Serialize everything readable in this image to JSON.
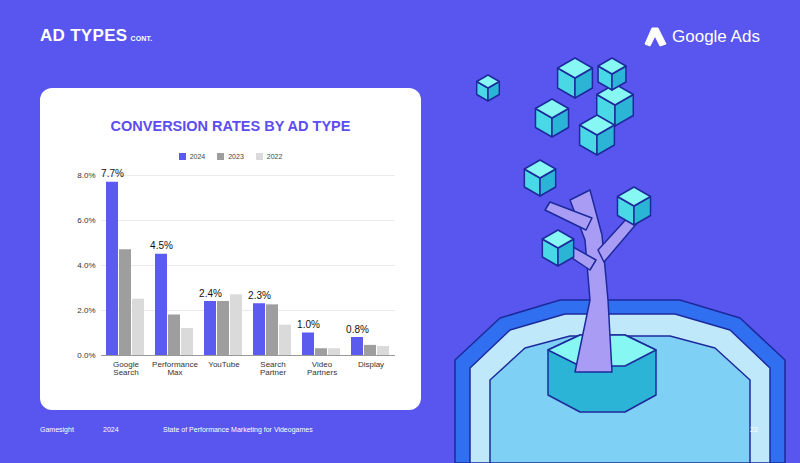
{
  "page": {
    "header": "AD TYPES",
    "header_suffix": "CONT.",
    "brand": "Google Ads",
    "footer": [
      "Gamesight",
      "2024",
      "State of Performance Marketing for Videogames",
      "22"
    ]
  },
  "chart_data": {
    "type": "bar",
    "title": "CONVERSION RATES BY AD TYPE",
    "categories": [
      "Google Search",
      "Performance Max",
      "YouTube",
      "Search Partner",
      "Video Partners",
      "Display"
    ],
    "series": [
      {
        "name": "2024",
        "color": "#5b5bf0",
        "values": [
          7.7,
          4.5,
          2.4,
          2.3,
          1.0,
          0.8
        ],
        "data_labels": true,
        "value_labels": [
          "7.7%",
          "4.5%",
          "2.4%",
          "2.3%",
          "1.0%",
          "0.8%"
        ]
      },
      {
        "name": "2023",
        "color": "#9e9e9e",
        "values": [
          4.7,
          1.8,
          2.4,
          2.25,
          0.3,
          0.45
        ]
      },
      {
        "name": "2022",
        "color": "#dadada",
        "values": [
          2.5,
          1.2,
          2.7,
          1.35,
          0.3,
          0.4
        ]
      }
    ],
    "ylim": [
      0,
      8
    ],
    "yticks": [
      {
        "value": 0,
        "label": "0.0%"
      },
      {
        "value": 2,
        "label": "2.0%"
      },
      {
        "value": 4,
        "label": "4.0%"
      },
      {
        "value": 6,
        "label": "6.0%"
      },
      {
        "value": 8,
        "label": "8.0%"
      }
    ],
    "grid": true,
    "legend": "top"
  }
}
